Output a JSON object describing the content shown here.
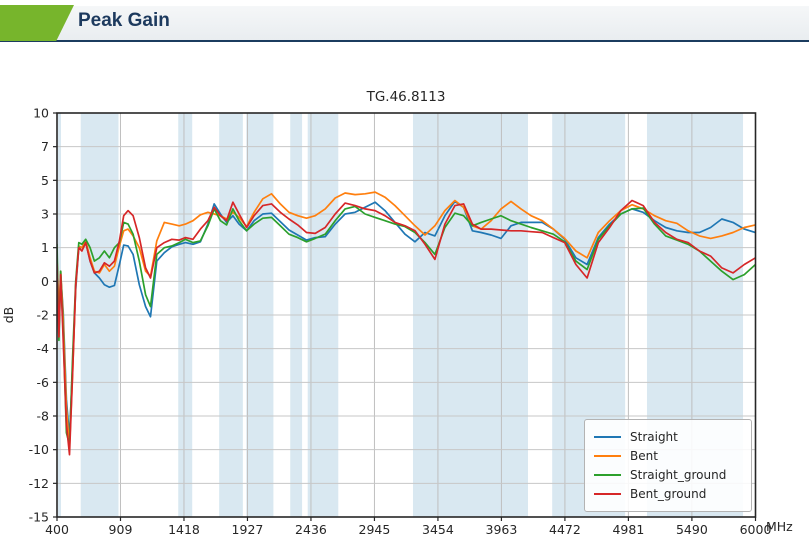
{
  "header": {
    "title": "Peak Gain",
    "accent_color": "#77b52c",
    "underline_color": "#1b3c5f"
  },
  "chart_data": {
    "type": "line",
    "title": "TG.46.8113",
    "ylabel": "dB",
    "x_unit": "MHz",
    "x_range": [
      400,
      6000
    ],
    "ylim": [
      -15,
      10
    ],
    "grid": true,
    "legend_position": "lower right",
    "x_ticks": [
      400,
      909,
      1418,
      1927,
      2436,
      2945,
      3454,
      3963,
      4472,
      4981,
      5490,
      6000
    ],
    "y_ticks": [
      10,
      7,
      5,
      3,
      1,
      0,
      -2,
      -4,
      -6,
      -8,
      -10,
      -12,
      -15
    ],
    "y_tick_spacing": "uniform",
    "band_color": "#d9e8f1",
    "bands": [
      [
        408,
        432
      ],
      [
        590,
        893
      ],
      [
        1372,
        1484
      ],
      [
        1700,
        1890
      ],
      [
        1918,
        2135
      ],
      [
        2270,
        2365
      ],
      [
        2410,
        2655
      ],
      [
        3254,
        4176
      ],
      [
        4370,
        4955
      ],
      [
        5130,
        5900
      ]
    ],
    "x": [
      400,
      415,
      430,
      450,
      475,
      500,
      525,
      550,
      575,
      600,
      630,
      665,
      700,
      740,
      780,
      820,
      860,
      900,
      935,
      970,
      1010,
      1060,
      1110,
      1150,
      1200,
      1260,
      1320,
      1380,
      1430,
      1490,
      1550,
      1610,
      1660,
      1710,
      1760,
      1810,
      1860,
      1920,
      1980,
      2050,
      2120,
      2190,
      2260,
      2330,
      2400,
      2470,
      2550,
      2630,
      2710,
      2790,
      2870,
      2950,
      3030,
      3110,
      3190,
      3270,
      3350,
      3430,
      3510,
      3590,
      3660,
      3730,
      3800,
      3880,
      3960,
      4040,
      4120,
      4200,
      4290,
      4380,
      4470,
      4560,
      4650,
      4740,
      4830,
      4920,
      5010,
      5100,
      5190,
      5280,
      5370,
      5460,
      5550,
      5640,
      5730,
      5820,
      5910,
      6000
    ],
    "series": [
      {
        "name": "Straight",
        "color": "#1f77b4",
        "values": [
          0.6,
          -2.5,
          0.2,
          -1.8,
          -7.0,
          -9.3,
          -5.0,
          -0.5,
          1.0,
          1.0,
          1.35,
          0.6,
          0.25,
          0.1,
          -0.2,
          -0.35,
          -0.25,
          0.5,
          1.15,
          1.1,
          0.8,
          -0.2,
          -1.5,
          -2.1,
          0.6,
          0.85,
          1.05,
          1.2,
          1.3,
          1.2,
          1.35,
          2.4,
          3.6,
          3.0,
          2.5,
          2.9,
          2.4,
          2.0,
          2.6,
          3.0,
          3.05,
          2.55,
          2.05,
          1.75,
          1.45,
          1.6,
          1.65,
          2.4,
          3.0,
          3.1,
          3.4,
          3.7,
          3.2,
          2.5,
          1.8,
          1.35,
          1.9,
          1.7,
          2.9,
          3.75,
          3.4,
          2.0,
          1.9,
          1.75,
          1.55,
          2.3,
          2.5,
          2.5,
          2.5,
          2.1,
          1.5,
          0.7,
          0.5,
          1.6,
          2.4,
          3.0,
          3.3,
          3.1,
          2.6,
          2.2,
          2.0,
          1.9,
          1.9,
          2.2,
          2.7,
          2.5,
          2.1,
          1.9
        ]
      },
      {
        "name": "Bent",
        "color": "#ff7f0e",
        "values": [
          0.7,
          -2.0,
          0.3,
          -2.2,
          -7.5,
          -9.9,
          -5.5,
          -0.3,
          1.1,
          1.0,
          1.4,
          0.7,
          0.3,
          0.25,
          0.5,
          0.3,
          0.45,
          1.1,
          2.0,
          2.1,
          1.7,
          1.0,
          0.3,
          0.15,
          1.4,
          2.5,
          2.4,
          2.3,
          2.4,
          2.6,
          2.95,
          3.1,
          3.0,
          2.9,
          2.7,
          3.1,
          2.8,
          2.25,
          3.1,
          3.9,
          4.2,
          3.6,
          3.1,
          2.9,
          2.75,
          2.9,
          3.3,
          3.95,
          4.25,
          4.15,
          4.2,
          4.3,
          4.0,
          3.5,
          2.9,
          2.3,
          1.75,
          2.3,
          3.2,
          3.8,
          3.4,
          2.3,
          2.1,
          2.6,
          3.3,
          3.75,
          3.3,
          2.9,
          2.6,
          2.1,
          1.55,
          0.9,
          0.7,
          1.9,
          2.6,
          3.2,
          3.55,
          3.3,
          2.9,
          2.6,
          2.45,
          2.0,
          1.7,
          1.55,
          1.7,
          1.9,
          2.2,
          2.35
        ]
      },
      {
        "name": "Straight_ground",
        "color": "#2ca02c",
        "values": [
          1.2,
          -3.5,
          0.3,
          -3.0,
          -9.0,
          -9.7,
          -4.5,
          0.0,
          1.3,
          1.2,
          1.5,
          1.0,
          0.6,
          0.7,
          0.9,
          0.7,
          1.0,
          1.3,
          2.5,
          2.4,
          1.8,
          0.6,
          -0.8,
          -1.5,
          0.8,
          1.0,
          1.1,
          1.3,
          1.5,
          1.3,
          1.4,
          2.3,
          3.3,
          2.6,
          2.35,
          3.3,
          2.6,
          2.0,
          2.4,
          2.75,
          2.8,
          2.3,
          1.8,
          1.6,
          1.35,
          1.55,
          1.8,
          2.6,
          3.3,
          3.45,
          3.0,
          2.8,
          2.6,
          2.4,
          2.25,
          1.9,
          1.3,
          0.8,
          2.2,
          3.05,
          2.9,
          2.3,
          2.5,
          2.7,
          2.9,
          2.6,
          2.4,
          2.2,
          2.0,
          1.8,
          1.35,
          0.6,
          0.35,
          1.5,
          2.3,
          3.0,
          3.3,
          3.35,
          2.4,
          1.7,
          1.45,
          1.2,
          0.9,
          0.6,
          0.3,
          0.05,
          0.2,
          0.5
        ]
      },
      {
        "name": "Bent_ground",
        "color": "#d62728",
        "values": [
          0.5,
          -3.3,
          0.2,
          -3.5,
          -8.5,
          -10.3,
          -5.5,
          -0.2,
          1.0,
          0.9,
          1.3,
          0.6,
          0.25,
          0.3,
          0.55,
          0.45,
          0.6,
          1.4,
          2.9,
          3.2,
          2.9,
          1.6,
          0.4,
          0.1,
          1.0,
          1.3,
          1.5,
          1.45,
          1.6,
          1.5,
          2.1,
          2.6,
          3.4,
          2.9,
          2.6,
          3.7,
          3.0,
          2.2,
          2.9,
          3.5,
          3.6,
          3.1,
          2.7,
          2.35,
          1.9,
          1.85,
          2.2,
          3.0,
          3.65,
          3.5,
          3.3,
          3.2,
          2.9,
          2.5,
          2.3,
          2.0,
          1.2,
          0.65,
          2.4,
          3.5,
          3.6,
          2.4,
          2.1,
          2.1,
          2.05,
          2.0,
          2.0,
          1.95,
          1.9,
          1.6,
          1.3,
          0.5,
          0.1,
          1.3,
          2.2,
          3.2,
          3.8,
          3.5,
          2.5,
          1.9,
          1.5,
          1.3,
          0.9,
          0.75,
          0.4,
          0.25,
          0.5,
          0.7
        ]
      }
    ]
  }
}
